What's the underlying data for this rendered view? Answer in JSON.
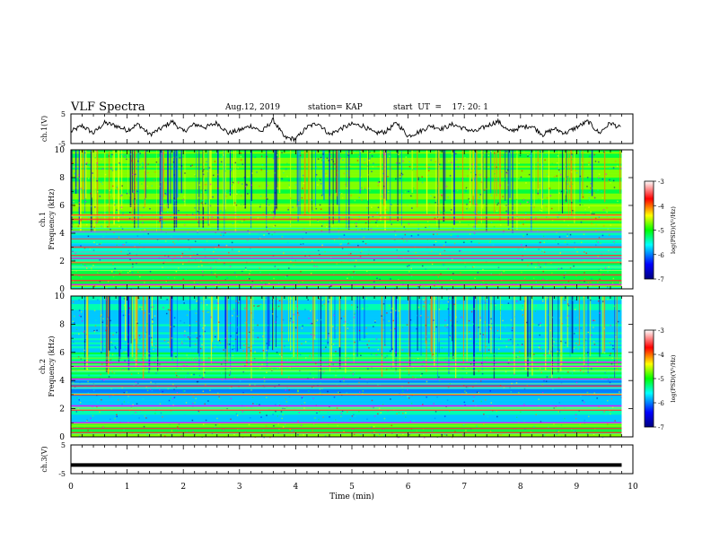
{
  "header": {
    "title": "VLF Spectra",
    "date": "Aug.12, 2019",
    "station": "station= KAP",
    "start_ut": "start  UT  =    17: 20: 1"
  },
  "chart_data": [
    {
      "type": "line",
      "panel": "ch1",
      "ylabel": "ch.1(V)",
      "ylim": [
        -5,
        5
      ],
      "y_ticks": [
        "5",
        "-5"
      ],
      "xlim": [
        0,
        10
      ],
      "x": [
        0,
        0.2,
        0.4,
        0.6,
        0.8,
        1.0,
        1.2,
        1.4,
        1.6,
        1.8,
        2.0,
        2.2,
        2.4,
        2.6,
        2.8,
        3.0,
        3.2,
        3.4,
        3.6,
        3.8,
        4.0,
        4.2,
        4.4,
        4.6,
        4.8,
        5.0,
        5.2,
        5.4,
        5.6,
        5.8,
        6.0,
        6.2,
        6.4,
        6.6,
        6.8,
        7.0,
        7.2,
        7.4,
        7.6,
        7.8,
        8.0,
        8.2,
        8.4,
        8.6,
        8.8,
        9.0,
        9.2,
        9.4,
        9.6,
        9.8
      ],
      "values": [
        -1,
        1,
        -1.5,
        2,
        1,
        -0.5,
        1.5,
        -2,
        0,
        2.5,
        -1,
        1.5,
        0.5,
        2,
        -1.5,
        -0.5,
        1,
        -1,
        3,
        -3,
        -3.5,
        0.5,
        2,
        -2,
        0,
        1.5,
        1,
        -1.5,
        -1,
        2,
        -2.5,
        -1,
        1,
        0,
        1.5,
        0,
        -1,
        1,
        2.5,
        -1,
        0.5,
        1,
        -2,
        0,
        -1.5,
        0.5,
        2.5,
        -1.5,
        2,
        0
      ]
    },
    {
      "type": "heatmap",
      "panel": "ch1-spectrogram",
      "ylabel": "ch.1\nFrequency (kHz)",
      "ylim": [
        0,
        10
      ],
      "y_ticks": [
        "0",
        "2",
        "4",
        "6",
        "8",
        "10"
      ],
      "xlim": [
        0,
        10
      ],
      "colorbar": {
        "label": "log(PSD)(V²/Hz)",
        "range": [
          -7,
          -3
        ],
        "ticks": [
          "-3",
          "-4",
          "-5",
          "-6",
          "-7"
        ]
      },
      "strong_bands_khz": [
        0.3,
        0.6,
        1.0,
        1.9,
        2.2,
        2.4,
        3.0,
        3.6,
        4.1,
        5.0,
        5.3
      ]
    },
    {
      "type": "heatmap",
      "panel": "ch2-spectrogram",
      "ylabel": "ch.2\nFrequency (kHz)",
      "ylim": [
        0,
        10
      ],
      "y_ticks": [
        "0",
        "2",
        "4",
        "6",
        "8",
        "10"
      ],
      "xlim": [
        0,
        10
      ],
      "colorbar": {
        "label": "log(PSD)(V²/Hz)",
        "range": [
          -7,
          -3
        ],
        "ticks": [
          "-3",
          "-4",
          "-5",
          "-6",
          "-7"
        ]
      },
      "strong_bands_khz": [
        0.3,
        0.6,
        1.0,
        1.9,
        2.2,
        3.0,
        3.6,
        4.1,
        5.0,
        5.3
      ]
    },
    {
      "type": "line",
      "panel": "ch3",
      "ylabel": "ch.3(V)",
      "ylim": [
        -5,
        5
      ],
      "y_ticks": [
        "5",
        "-5"
      ],
      "xlim": [
        0,
        9.8
      ],
      "x": [
        0,
        9.8
      ],
      "values": [
        -2,
        -2
      ]
    }
  ],
  "x_axis": {
    "label": "Time (min)",
    "ticks": [
      "0",
      "1",
      "2",
      "3",
      "4",
      "5",
      "6",
      "7",
      "8",
      "9",
      "10"
    ]
  }
}
